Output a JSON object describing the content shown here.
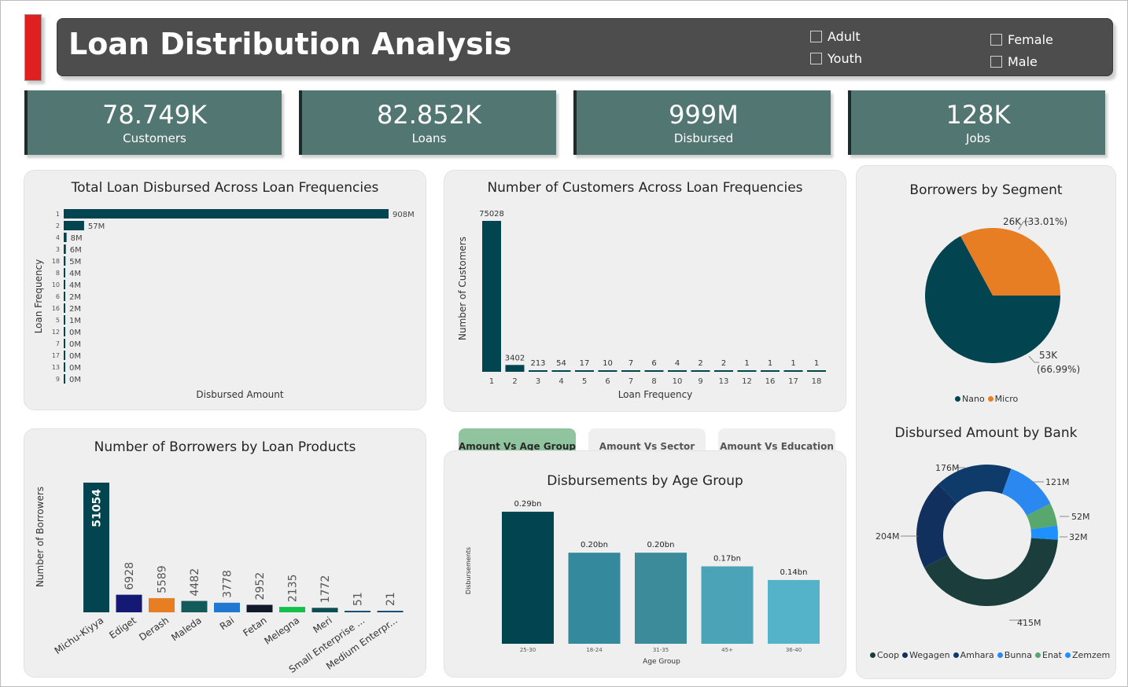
{
  "header": {
    "title": "Loan Distribution Analysis",
    "filters": [
      {
        "label": "Adult",
        "checked": false
      },
      {
        "label": "Youth",
        "checked": false
      },
      {
        "label": "Female",
        "checked": false
      },
      {
        "label": "Male",
        "checked": false
      }
    ]
  },
  "kpis": [
    {
      "value": "78.749K",
      "label": "Customers"
    },
    {
      "value": "82.852K",
      "label": "Loans"
    },
    {
      "value": "999M",
      "label": "Disbursed"
    },
    {
      "value": "128K",
      "label": "Jobs"
    }
  ],
  "colors": {
    "teal_dark": "#024450",
    "kpi_bg": "#527672",
    "header_bg": "#4d4d4d",
    "accent_red": "#e02020",
    "orange": "#e87e24"
  },
  "chart_data": [
    {
      "type": "bar",
      "orientation": "horizontal",
      "title": "Total Loan Disbursed Across Loan Frequencies",
      "xlabel": "Disbursed Amount",
      "ylabel": "Loan Frequency",
      "categories": [
        "1",
        "2",
        "4",
        "3",
        "18",
        "8",
        "10",
        "6",
        "16",
        "5",
        "12",
        "7",
        "17",
        "13",
        "9"
      ],
      "values": [
        908,
        57,
        8,
        6,
        5,
        4,
        4,
        2,
        2,
        1,
        0,
        0,
        0,
        0,
        0
      ],
      "value_labels": [
        "908M",
        "57M",
        "8M",
        "6M",
        "5M",
        "4M",
        "4M",
        "2M",
        "2M",
        "1M",
        "0M",
        "0M",
        "0M",
        "0M",
        "0M"
      ],
      "unit": "M"
    },
    {
      "type": "bar",
      "title": "Number of Customers Across Loan Frequencies",
      "xlabel": "Loan Frequency",
      "ylabel": "Number of Customers",
      "categories": [
        "1",
        "2",
        "3",
        "4",
        "5",
        "6",
        "7",
        "8",
        "10",
        "9",
        "13",
        "12",
        "16",
        "17",
        "18"
      ],
      "values": [
        75028,
        3402,
        213,
        54,
        17,
        10,
        7,
        6,
        4,
        2,
        2,
        1,
        1,
        1,
        1
      ]
    },
    {
      "type": "pie",
      "title": "Borrowers by Segment",
      "series": [
        {
          "name": "Nano",
          "value": 53,
          "label": "53K",
          "pct_label": "(66.99%)",
          "color": "#024450"
        },
        {
          "name": "Micro",
          "value": 26,
          "label": "26K (33.01%)",
          "color": "#e87e24"
        }
      ]
    },
    {
      "type": "bar",
      "title": "Number of Borrowers by Loan Products",
      "ylabel": "Number of Borrowers",
      "categories": [
        "Michu-Kiyya",
        "Ediget",
        "Derash",
        "Maleda",
        "Rai",
        "Fetan",
        "Melegna",
        "Meri",
        "Small Enterprise ...",
        "Medium Enterpr..."
      ],
      "values": [
        51054,
        6928,
        5589,
        4482,
        3778,
        2952,
        2135,
        1772,
        51,
        21
      ],
      "colors": [
        "#024450",
        "#141a73",
        "#e87e24",
        "#135a5a",
        "#2178d0",
        "#101a2a",
        "#13c04a",
        "#0e4d52",
        "#1e4f73",
        "#1e4f73"
      ]
    },
    {
      "type": "bar",
      "title": "Disbursements by Age Group",
      "xlabel": "Age Group",
      "ylabel": "Disbursements",
      "categories": [
        "25-30",
        "18-24",
        "31-35",
        "45+",
        "36-40"
      ],
      "values": [
        0.29,
        0.2,
        0.2,
        0.17,
        0.14
      ],
      "value_labels": [
        "0.29bn",
        "0.20bn",
        "0.20bn",
        "0.17bn",
        "0.14bn"
      ],
      "colors": [
        "#024450",
        "#348a9c",
        "#3b8b9b",
        "#4aa3b7",
        "#55b3c9"
      ]
    },
    {
      "type": "pie",
      "subtype": "donut",
      "title": "Disbursed Amount by Bank",
      "series": [
        {
          "name": "Coop",
          "value": 415,
          "label": "415M",
          "color": "#1b3d3c"
        },
        {
          "name": "Wegagen",
          "value": 204,
          "label": "204M",
          "color": "#12305e"
        },
        {
          "name": "Amhara",
          "value": 176,
          "label": "176M",
          "color": "#0f3b6b"
        },
        {
          "name": "Bunna",
          "value": 121,
          "label": "121M",
          "color": "#2a88f0"
        },
        {
          "name": "Enat",
          "value": 52,
          "label": "52M",
          "color": "#58a86e"
        },
        {
          "name": "Zemzem",
          "value": 32,
          "label": "32M",
          "color": "#1e90ff"
        }
      ]
    }
  ],
  "tabs": [
    {
      "label": "Amount Vs Age Group",
      "active": true
    },
    {
      "label": "Amount Vs Sector",
      "active": false
    },
    {
      "label": "Amount Vs Education",
      "active": false
    }
  ]
}
